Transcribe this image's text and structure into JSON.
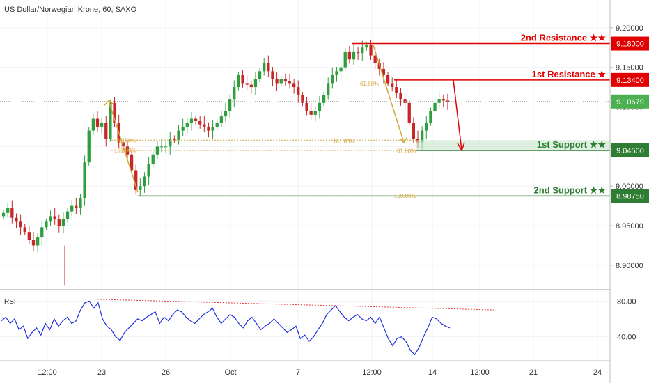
{
  "header": {
    "title": "US Dollar/Norwegian Krone, 60, SAXO"
  },
  "rsi_panel": {
    "label": "RSI"
  },
  "colors": {
    "up": "#2e9e3e",
    "down": "#c62828",
    "resistance": "#e00000",
    "support": "#2e7d32",
    "fib": "#d4a73c",
    "rsi": "#1e2fe0",
    "rsi_trend": "#e53935",
    "current_price": "#4caf50"
  },
  "chart_data": [
    {
      "type": "candlestick",
      "title": "US Dollar/Norwegian Krone, 60, SAXO",
      "ylim": [
        8.87,
        9.235
      ],
      "y_ticks": [
        "9.20000",
        "9.15000",
        "9.10000",
        "9.05000",
        "9.00000",
        "8.95000",
        "8.90000"
      ],
      "x_ticks": [
        "12:00",
        "23",
        "26",
        "Oct",
        "7",
        "12:00",
        "14",
        "12:00",
        "21",
        "24"
      ],
      "current_price": {
        "label": "9.10679",
        "value": 9.10679
      },
      "levels": [
        {
          "name": "2nd Resistance ★★",
          "price_label": "9.18000",
          "value": 9.18,
          "kind": "resistance"
        },
        {
          "name": "1st Resistance ★",
          "price_label": "9.13400",
          "value": 9.134,
          "kind": "resistance"
        },
        {
          "name": "1st Support ★★",
          "price_label": "9.04500",
          "value": 9.045,
          "kind": "support"
        },
        {
          "name": "2nd Support ★★",
          "price_label": "8.98750",
          "value": 8.9875,
          "kind": "support"
        }
      ],
      "fib_labels": [
        "61.80%",
        "161.80%",
        "61.80%",
        "161.80%",
        "61.80%",
        "100.00%"
      ],
      "series": [
        {
          "values": [
            8.966,
            8.972,
            8.96,
            8.955,
            8.948,
            8.942,
            8.932,
            8.925,
            8.935,
            8.948,
            8.955,
            8.962,
            8.958,
            8.95,
            8.958,
            8.968,
            8.975,
            8.972,
            8.985,
            9.03,
            9.07,
            9.085,
            9.075,
            9.08,
            9.06,
            9.105,
            9.08,
            9.055,
            9.05,
            9.04,
            9.02,
            8.995,
            9.0,
            9.012,
            9.028,
            9.04,
            9.05,
            9.05,
            9.05,
            9.06,
            9.058,
            9.07,
            9.075,
            9.08,
            9.085,
            9.082,
            9.078,
            9.075,
            9.07,
            9.075,
            9.08,
            9.088,
            9.095,
            9.11,
            9.125,
            9.14,
            9.13,
            9.128,
            9.125,
            9.135,
            9.145,
            9.155,
            9.145,
            9.135,
            9.13,
            9.135,
            9.132,
            9.13,
            9.125,
            9.115,
            9.105,
            9.095,
            9.09,
            9.095,
            9.105,
            9.115,
            9.13,
            9.14,
            9.145,
            9.15,
            9.17,
            9.16,
            9.17,
            9.168,
            9.175,
            9.178,
            9.165,
            9.155,
            9.148,
            9.14,
            9.13,
            9.125,
            9.118,
            9.11,
            9.105,
            9.08,
            9.06,
            9.055,
            9.07,
            9.08,
            9.095,
            9.105,
            9.11,
            9.108,
            9.106
          ]
        }
      ]
    },
    {
      "type": "line",
      "title": "RSI",
      "ylim": [
        14,
        92
      ],
      "y_ticks": [
        "80.00",
        "40.00"
      ],
      "series": [
        {
          "values": [
            58,
            62,
            55,
            60,
            48,
            52,
            38,
            45,
            50,
            42,
            55,
            48,
            60,
            52,
            58,
            62,
            55,
            58,
            70,
            78,
            80,
            72,
            78,
            60,
            52,
            48,
            40,
            36,
            45,
            50,
            55,
            60,
            58,
            62,
            65,
            68,
            55,
            62,
            58,
            65,
            70,
            68,
            62,
            58,
            55,
            60,
            65,
            68,
            72,
            62,
            55,
            60,
            65,
            62,
            55,
            50,
            58,
            62,
            55,
            48,
            52,
            55,
            60,
            55,
            50,
            45,
            48,
            52,
            38,
            42,
            35,
            40,
            48,
            55,
            65,
            70,
            75,
            68,
            62,
            58,
            62,
            65,
            60,
            58,
            62,
            55,
            62,
            50,
            38,
            30,
            38,
            40,
            35,
            25,
            20,
            28,
            40,
            50,
            62,
            60,
            55,
            52,
            50
          ]
        },
        {
          "name": "RSI trend line",
          "values": [
            82,
            70
          ]
        }
      ]
    }
  ]
}
